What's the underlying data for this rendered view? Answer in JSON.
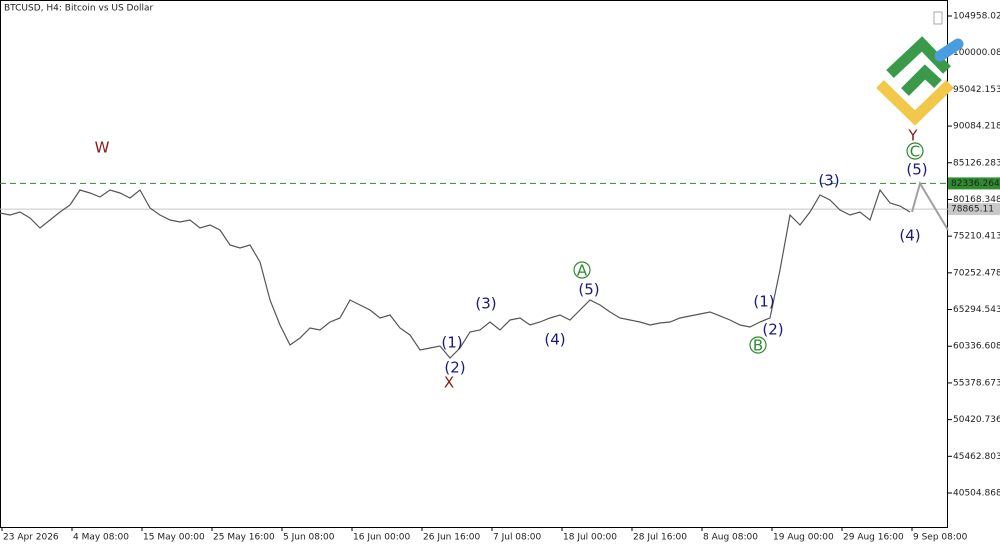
{
  "chart_data": {
    "type": "line",
    "title": "BTCUSD, H4:  Bitcoin vs US Dollar",
    "ylim": [
      35910,
      107120
    ],
    "yticks": [
      104958.023,
      100000.088,
      95042.153,
      90084.218,
      85126.283,
      80168.348,
      75210.413,
      70252.478,
      65294.543,
      60336.608,
      55378.673,
      50420.736,
      45462.803,
      40504.868
    ],
    "xticks": [
      "23 Apr 2026",
      "4 May 08:00",
      "15 May 00:00",
      "25 May 16:00",
      "5 Jun 08:00",
      "16 Jun 00:00",
      "26 Jun 16:00",
      "7 Jul 08:00",
      "18 Jul 00:00",
      "28 Jul 16:00",
      "8 Aug 08:00",
      "19 Aug 00:00",
      "29 Aug 16:00",
      "9 Sep 08:00"
    ],
    "series": [
      {
        "color": "#555555",
        "values": [
          78339,
          78069,
          78474,
          77664,
          76313,
          77394,
          78474,
          79420,
          81447,
          81042,
          80501,
          81447,
          81042,
          80366,
          81447,
          79015,
          78069,
          77394,
          77123,
          77394,
          76313,
          76718,
          76042,
          74016,
          73610,
          74016,
          71718,
          66584,
          63206,
          60504,
          61449,
          62801,
          62530,
          63611,
          64152,
          66584,
          65908,
          65233,
          64152,
          64557,
          62801,
          61857,
          59828,
          60098,
          60368,
          58747,
          60098,
          62260,
          62530,
          63611,
          62530,
          63882,
          64152,
          63206,
          63611,
          64152,
          64557,
          63882,
          65233,
          66584,
          65908,
          64962,
          64152,
          63882,
          63611,
          63206,
          63476,
          63611,
          64152,
          64422,
          64692,
          64962,
          64422,
          63882,
          63206,
          62936,
          63611,
          64152,
          70639,
          78069,
          76718,
          78474,
          80772,
          80096,
          78745,
          78069,
          78474,
          77394,
          81447,
          79691,
          79285,
          78474
        ]
      }
    ],
    "forecast": {
      "color": "#a0a0a0",
      "x": [
        91.2,
        92,
        94.8
      ],
      "values": [
        78474,
        82336,
        76042
      ]
    },
    "levels": [
      {
        "value": 82336.264,
        "color": "#2e8b2e",
        "style": "dashed"
      },
      {
        "value": 78865.11,
        "color": "#c8c8c8",
        "style": "solid"
      }
    ],
    "annotations": [
      {
        "text": "W",
        "color": "#8b1a1a",
        "circled": false,
        "x": 10.2,
        "price": 87257
      },
      {
        "text": "X",
        "color": "#8b1a1a",
        "circled": false,
        "x": 44.9,
        "price": 55504
      },
      {
        "text": "Y",
        "color": "#8b1a1a",
        "circled": false,
        "x": 91.3,
        "price": 88879
      },
      {
        "text": "(1)",
        "color": "#1a1a7a",
        "circled": false,
        "x": 45.2,
        "price": 60908
      },
      {
        "text": "(2)",
        "color": "#1a1a7a",
        "circled": false,
        "x": 45.5,
        "price": 57530
      },
      {
        "text": "(3)",
        "color": "#1a1a7a",
        "circled": false,
        "x": 48.6,
        "price": 66179
      },
      {
        "text": "(4)",
        "color": "#1a1a7a",
        "circled": false,
        "x": 55.5,
        "price": 61314
      },
      {
        "text": "(5)",
        "color": "#1a1a7a",
        "circled": false,
        "x": 58.9,
        "price": 68070
      },
      {
        "text": "A",
        "color": "#2e8b2e",
        "circled": true,
        "x": 58.2,
        "price": 70637
      },
      {
        "text": "(1)",
        "color": "#1a1a7a",
        "circled": false,
        "x": 76.4,
        "price": 66449
      },
      {
        "text": "(2)",
        "color": "#1a1a7a",
        "circled": false,
        "x": 77.3,
        "price": 62666
      },
      {
        "text": "B",
        "color": "#2e8b2e",
        "circled": true,
        "x": 75.8,
        "price": 60504
      },
      {
        "text": "(3)",
        "color": "#1a1a7a",
        "circled": false,
        "x": 82.9,
        "price": 82798
      },
      {
        "text": "(4)",
        "color": "#1a1a7a",
        "circled": false,
        "x": 91.0,
        "price": 75366
      },
      {
        "text": "(5)",
        "color": "#1a1a7a",
        "circled": false,
        "x": 91.7,
        "price": 84285
      },
      {
        "text": "C",
        "color": "#2e8b2e",
        "circled": true,
        "x": 91.5,
        "price": 86717
      }
    ]
  }
}
